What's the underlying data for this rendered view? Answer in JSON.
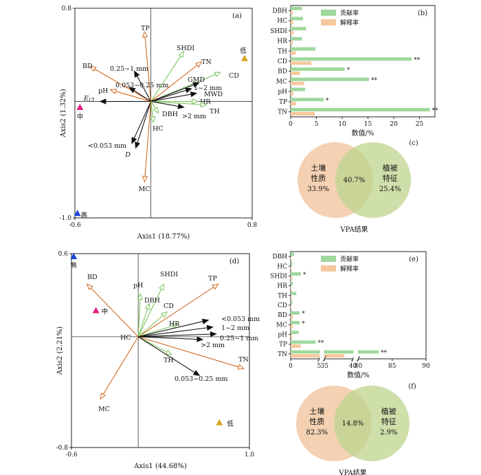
{
  "colors": {
    "soil": "#d2691e",
    "veg": "#7cc35c",
    "env": "#111111",
    "contrib": "#9fd89d",
    "explain": "#f6c79c",
    "high": "#1f45d6",
    "mid": "#e0207f",
    "low": "#d7a520",
    "venn_soil": "#f2c9a5",
    "venn_veg": "#bdd48e"
  },
  "chart_data": [
    {
      "panel": "(a)",
      "type": "scatter",
      "xlabel": "Axis1 (18.77%)",
      "ylabel": "Axis2 (1.32%)",
      "xlim": [
        -0.6,
        0.8
      ],
      "ylim": [
        -1.0,
        0.8
      ],
      "xticks": [
        "-0.6",
        "0.8"
      ],
      "yticks": [
        "0.8",
        "-1.0"
      ],
      "arrows": [
        {
          "label": "TP",
          "group": "soil",
          "x": -0.05,
          "y": 0.6
        },
        {
          "label": "BD",
          "group": "soil",
          "x": -0.48,
          "y": 0.3
        },
        {
          "label": "0.25~1 mm",
          "group": "env",
          "x": -0.13,
          "y": 0.26
        },
        {
          "label": "0.053~0.25 mm",
          "group": "env",
          "x": -0.17,
          "y": 0.12
        },
        {
          "label": "pH",
          "group": "soil",
          "x": -0.32,
          "y": 0.1
        },
        {
          "label": "E_LT",
          "group": "env",
          "x": -0.4,
          "y": 0.0
        },
        {
          "label": "SHDI",
          "group": "veg",
          "x": 0.26,
          "y": 0.43
        },
        {
          "label": "TN",
          "group": "soil",
          "x": 0.4,
          "y": 0.34
        },
        {
          "label": "CD",
          "group": "veg",
          "x": 0.55,
          "y": 0.25
        },
        {
          "label": "GMD",
          "group": "env",
          "x": 0.38,
          "y": 0.16
        },
        {
          "label": "1~2 mm",
          "group": "env",
          "x": 0.32,
          "y": 0.11
        },
        {
          "label": "MWD",
          "group": "env",
          "x": 0.36,
          "y": 0.07
        },
        {
          "label": "HR",
          "group": "veg",
          "x": 0.37,
          "y": 0.0
        },
        {
          "label": "TH",
          "group": "veg",
          "x": 0.44,
          "y": -0.03
        },
        {
          "label": ">2 mm",
          "group": "env",
          "x": 0.26,
          "y": -0.05
        },
        {
          "label": "DBH",
          "group": "veg",
          "x": 0.06,
          "y": -0.1
        },
        {
          "label": "HC",
          "group": "veg",
          "x": 0.02,
          "y": -0.18
        },
        {
          "label": "<0.053 mm",
          "group": "env",
          "x": -0.15,
          "y": -0.36
        },
        {
          "label": "D",
          "group": "env",
          "x": -0.12,
          "y": -0.4
        },
        {
          "label": "MC",
          "group": "soil",
          "x": -0.05,
          "y": -0.69
        }
      ],
      "sites": [
        {
          "label": "低",
          "x": 0.74,
          "y": 0.37,
          "color": "low"
        },
        {
          "label": "中",
          "x": -0.56,
          "y": -0.05,
          "color": "mid"
        },
        {
          "label": "高",
          "x": -0.58,
          "y": -0.96,
          "color": "high"
        }
      ]
    },
    {
      "panel": "(b)",
      "type": "bar",
      "xlabel": "数值/%",
      "xlim": [
        0,
        28
      ],
      "xticks": [
        "0",
        "5",
        "10",
        "15",
        "20",
        "25"
      ],
      "categories": [
        "DBH",
        "HC",
        "SHDI",
        "HR",
        "TH",
        "CD",
        "BD",
        "MC",
        "pH",
        "TP",
        "TN"
      ],
      "series": [
        {
          "name": "贡献率",
          "values": [
            2.2,
            2.4,
            3.0,
            2.2,
            4.8,
            23.5,
            10.5,
            15.2,
            2.8,
            6.4,
            27.0
          ]
        },
        {
          "name": "解释率",
          "values": [
            0.4,
            0.5,
            0.6,
            0.4,
            1.0,
            4.0,
            1.8,
            2.6,
            0.5,
            1.1,
            4.7
          ]
        }
      ],
      "significance": [
        "",
        "",
        "",
        "",
        "",
        "**",
        "*",
        "**",
        "",
        "*",
        "**"
      ]
    },
    {
      "panel": "(c)",
      "type": "venn",
      "xlabel": "VPA结果",
      "sets": [
        {
          "name": "土壤\n性质",
          "value": "33.9%"
        },
        {
          "name": "植被\n特征",
          "value": "25.4%"
        }
      ],
      "overlap": "40.7%"
    },
    {
      "panel": "(d)",
      "type": "scatter",
      "xlabel": "Axis1 (44.68%)",
      "ylabel": "Axis2 (2.21%)",
      "xlim": [
        -0.6,
        1.0
      ],
      "ylim": [
        -0.8,
        0.6
      ],
      "xticks": [
        "-0.6",
        "1.0"
      ],
      "yticks": [
        "0.6",
        "-0.8"
      ],
      "arrows": [
        {
          "label": "BD",
          "group": "soil",
          "x": -0.46,
          "y": 0.38
        },
        {
          "label": "pH",
          "group": "veg",
          "x": 0.02,
          "y": 0.31
        },
        {
          "label": "SHDI",
          "group": "veg",
          "x": 0.23,
          "y": 0.38
        },
        {
          "label": "TP",
          "group": "soil",
          "x": 0.72,
          "y": 0.38
        },
        {
          "label": "DBH",
          "group": "veg",
          "x": 0.1,
          "y": 0.24
        },
        {
          "label": "CD",
          "group": "veg",
          "x": 0.26,
          "y": 0.18
        },
        {
          "label": "HR",
          "group": "veg",
          "x": 0.36,
          "y": 0.09
        },
        {
          "label": "<0.053 mm",
          "group": "env",
          "x": 0.63,
          "y": 0.12
        },
        {
          "label": "1~2 mm",
          "group": "env",
          "x": 0.67,
          "y": 0.07
        },
        {
          "label": "0.25~1 mm",
          "group": "env",
          "x": 0.7,
          "y": 0.02
        },
        {
          "label": ">2 mm",
          "group": "env",
          "x": 0.58,
          "y": -0.02
        },
        {
          "label": "HC",
          "group": "veg",
          "x": 0.0,
          "y": 0.0
        },
        {
          "label": "TN",
          "group": "soil",
          "x": 0.95,
          "y": -0.23
        },
        {
          "label": "TH",
          "group": "veg",
          "x": 0.3,
          "y": -0.13
        },
        {
          "label": "0.053~0.25 mm",
          "group": "env",
          "x": 0.55,
          "y": -0.28
        },
        {
          "label": "MC",
          "group": "soil",
          "x": -0.34,
          "y": -0.45
        }
      ],
      "sites": [
        {
          "label": "高",
          "x": -0.58,
          "y": 0.58,
          "color": "high"
        },
        {
          "label": "中",
          "x": -0.38,
          "y": 0.19,
          "color": "mid"
        },
        {
          "label": "低",
          "x": 0.73,
          "y": -0.62,
          "color": "low"
        }
      ]
    },
    {
      "panel": "(e)",
      "type": "bar",
      "broken_axis": true,
      "xlabel": "数值/%",
      "xlim": [
        0,
        90
      ],
      "xticks": [
        "0",
        "5",
        "35",
        "40",
        "80",
        "85",
        "90"
      ],
      "categories": [
        "DBH",
        "HC",
        "SHDI",
        "HR",
        "TH",
        "CD",
        "BD",
        "MC",
        "pH",
        "TP",
        "TN"
      ],
      "series": [
        {
          "name": "贡献率",
          "values": [
            0.6,
            0.3,
            1.8,
            0.4,
            1.0,
            0.3,
            1.6,
            1.6,
            1.4,
            4.4,
            83.0
          ]
        },
        {
          "name": "解释率",
          "values": [
            0.1,
            0.1,
            0.3,
            0.1,
            0.2,
            0.1,
            0.4,
            0.4,
            0.3,
            1.8,
            38.5
          ]
        }
      ],
      "significance": [
        "",
        "",
        "*",
        "",
        "",
        "",
        "*",
        "*",
        "",
        "**",
        "**"
      ]
    },
    {
      "panel": "(f)",
      "type": "venn",
      "xlabel": "VPA结果",
      "sets": [
        {
          "name": "土壤\n性质",
          "value": "82.3%"
        },
        {
          "name": "植被\n特征",
          "value": "2.9%"
        }
      ],
      "overlap": "14.8%"
    }
  ]
}
